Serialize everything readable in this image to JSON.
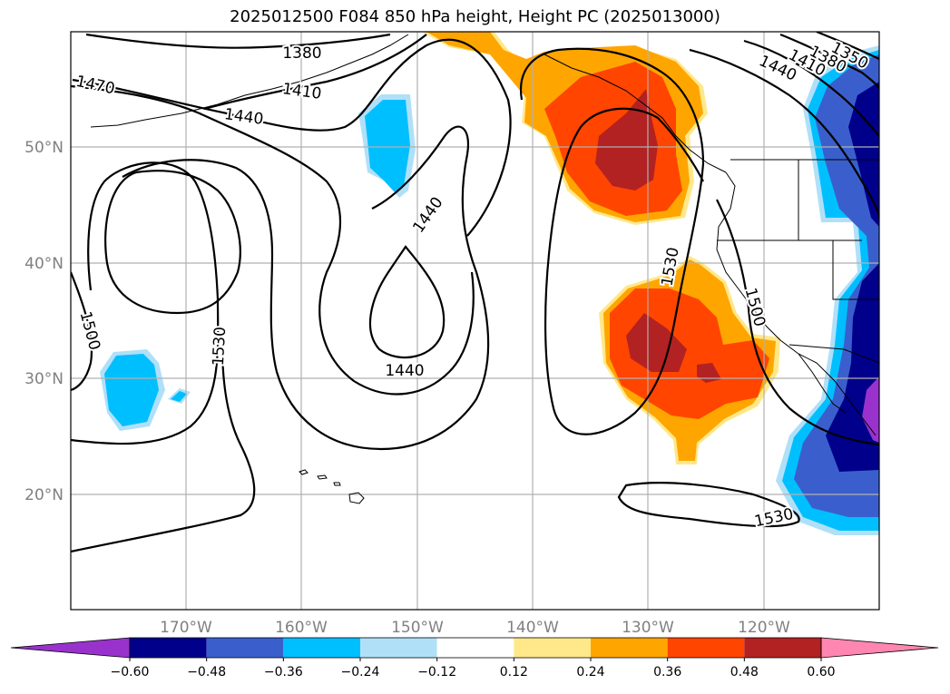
{
  "title": "2025012500 F084 850 hPa height, Height PC (2025013000)",
  "lat_labels": [
    "50°N",
    "40°N",
    "30°N",
    "20°N"
  ],
  "lon_labels": [
    "170°W",
    "160°W",
    "150°W",
    "140°W",
    "130°W",
    "120°W"
  ],
  "contour_labels": [
    "1380",
    "1410",
    "1440",
    "1470",
    "1500",
    "1530",
    "1440",
    "1440",
    "1530",
    "1500",
    "1530",
    "1440",
    "1410",
    "1380",
    "1350"
  ],
  "colorbar": {
    "ticks": [
      "−0.60",
      "−0.48",
      "−0.36",
      "−0.24",
      "−0.12",
      "0.12",
      "0.24",
      "0.36",
      "0.48",
      "0.60"
    ],
    "colors": [
      "#9932cc",
      "#00008b",
      "#3a5fcd",
      "#00bfff",
      "#b0e0f8",
      "#ffffff",
      "#ffe88a",
      "#ffa500",
      "#ff4500",
      "#b22222",
      "#ff86b0"
    ]
  },
  "fill_colors": {
    "orange": "#ffa500",
    "red_orange": "#ff4500",
    "dark_red": "#b22222",
    "light_yellow": "#ffe88a",
    "sky_blue": "#00bfff",
    "light_blue": "#b0e0f8",
    "royal_blue": "#3a5fcd",
    "navy": "#00008b",
    "purple": "#9932cc"
  }
}
